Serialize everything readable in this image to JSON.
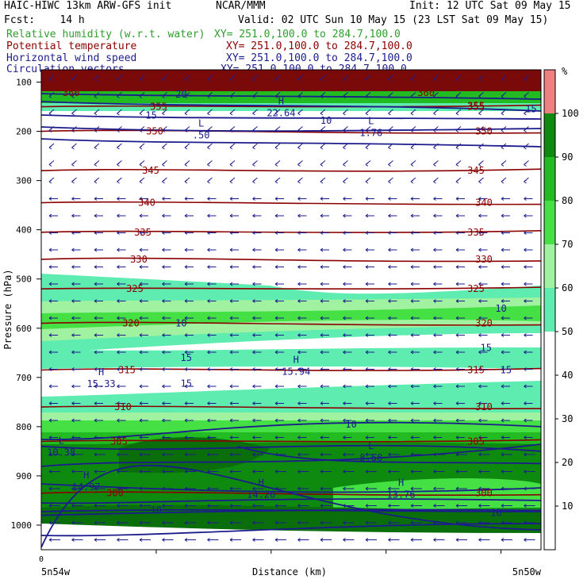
{
  "header": {
    "line1_left": "HAIC-HIWC 13km ARW-GFS init",
    "line1_mid": "NCAR/MMM",
    "line1_right": "Init: 12 UTC Sat 09 May 15",
    "line2_left": "Fcst:    14 h",
    "line2_right": "Valid: 02 UTC Sun 10 May 15 (23 LST Sat 09 May 15)",
    "fields": [
      {
        "name": "Relative humidity (w.r.t. water)",
        "xy": "XY= 251.0,100.0 to 284.7,100.0",
        "color": "#2e9e2e"
      },
      {
        "name": "Potential temperature",
        "xy": "XY= 251.0,100.0 to 284.7,100.0",
        "color": "#8b0000"
      },
      {
        "name": "Horizontal wind speed",
        "xy": "XY= 251.0,100.0 to 284.7,100.0",
        "color": "#1c1c8c"
      },
      {
        "name": "Circulation vectors",
        "xy": "XY= 251.0,100.0 to 284.7,100.0",
        "color": "#1c1c8c"
      }
    ]
  },
  "chart_data": {
    "type": "contour",
    "ylabel": "Pressure (hPa)",
    "xlabel": "Distance (km)",
    "x_left_label": "5n54w",
    "x_right_label": "5n50w",
    "x_zero_label": "0",
    "yticks": [
      100,
      200,
      300,
      400,
      500,
      600,
      700,
      800,
      900,
      1000
    ],
    "ylim": [
      1050,
      75
    ],
    "colorbar": {
      "unit": "%",
      "ticks": [
        10,
        20,
        30,
        40,
        50,
        60,
        70,
        80,
        90,
        100
      ],
      "bins": [
        {
          "from": 50,
          "to": 60,
          "color": "#5eecb0"
        },
        {
          "from": 60,
          "to": 70,
          "color": "#a0f2a0"
        },
        {
          "from": 70,
          "to": 80,
          "color": "#44e044"
        },
        {
          "from": 80,
          "to": 90,
          "color": "#22bb22"
        },
        {
          "from": 90,
          "to": 100,
          "color": "#0e8a0e"
        },
        {
          "from": 100,
          "to": 110,
          "color": "#f08080"
        }
      ]
    },
    "theta_contours": [
      {
        "label": "355",
        "p": 150
      },
      {
        "label": "350",
        "p": 200
      },
      {
        "label": "345",
        "p": 280
      },
      {
        "label": "340",
        "p": 345
      },
      {
        "label": "335",
        "p": 405
      },
      {
        "label": "330",
        "p": 460
      },
      {
        "label": "325",
        "p": 520
      },
      {
        "label": "320",
        "p": 590
      },
      {
        "label": "315",
        "p": 685
      },
      {
        "label": "310",
        "p": 760
      },
      {
        "label": "305",
        "p": 830
      },
      {
        "label": "300",
        "p": 935
      }
    ],
    "extrema": [
      {
        "kind": "H",
        "value": "22.64",
        "x_frac": 0.48,
        "p": 150
      },
      {
        "kind": "L",
        "value": ".50",
        "x_frac": 0.32,
        "p": 195
      },
      {
        "kind": "L",
        "value": "1.76",
        "x_frac": 0.66,
        "p": 190
      },
      {
        "kind": "H",
        "value": "15.33",
        "x_frac": 0.12,
        "p": 700
      },
      {
        "kind": "H",
        "value": "15.94",
        "x_frac": 0.51,
        "p": 675
      },
      {
        "kind": "L",
        "value": "10.38",
        "x_frac": 0.04,
        "p": 840
      },
      {
        "kind": "L",
        "value": "8.68",
        "x_frac": 0.66,
        "p": 850
      },
      {
        "kind": "H",
        "value": "14.97",
        "x_frac": 0.09,
        "p": 910
      },
      {
        "kind": "H",
        "value": "14.26",
        "x_frac": 0.44,
        "p": 925
      },
      {
        "kind": "H",
        "value": "13.76",
        "x_frac": 0.72,
        "p": 925
      }
    ],
    "speed_labels": [
      {
        "label": "20",
        "x_frac": 0.28,
        "p": 125
      },
      {
        "label": "15",
        "x_frac": 0.22,
        "p": 168
      },
      {
        "label": "10",
        "x_frac": 0.57,
        "p": 178
      },
      {
        "label": "15",
        "x_frac": 0.98,
        "p": 155
      },
      {
        "label": "10",
        "x_frac": 0.28,
        "p": 590
      },
      {
        "label": "10",
        "x_frac": 0.92,
        "p": 560
      },
      {
        "label": "15",
        "x_frac": 0.89,
        "p": 640
      },
      {
        "label": "15",
        "x_frac": 0.29,
        "p": 660
      },
      {
        "label": "15",
        "x_frac": 0.29,
        "p": 712
      },
      {
        "label": "15",
        "x_frac": 0.93,
        "p": 685
      },
      {
        "label": "10",
        "x_frac": 0.62,
        "p": 795
      },
      {
        "label": "10",
        "x_frac": 0.23,
        "p": 970
      },
      {
        "label": "10",
        "x_frac": 0.91,
        "p": 975
      }
    ],
    "top_theta_labels": [
      {
        "label": "360",
        "x_frac": 0.06,
        "p": 122
      },
      {
        "label": "360",
        "x_frac": 0.77,
        "p": 122
      },
      {
        "label": "355",
        "x_frac": 0.87,
        "p": 148
      }
    ]
  }
}
